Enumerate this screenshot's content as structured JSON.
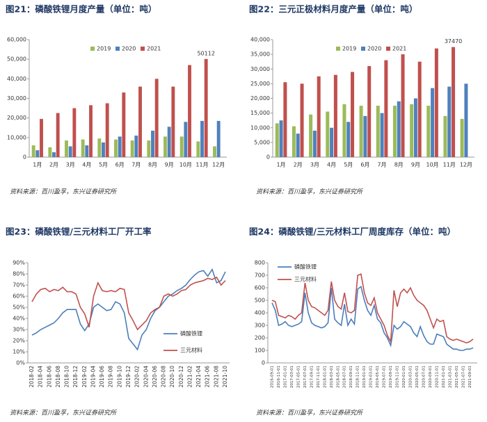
{
  "chart_data": [
    {
      "type": "bar",
      "title": "图21：磷酸铁锂月度产量（单位：吨）",
      "categories": [
        "1月",
        "2月",
        "3月",
        "4月",
        "5月",
        "6月",
        "7月",
        "8月",
        "9月",
        "10月",
        "11月",
        "12月"
      ],
      "series": [
        {
          "name": "2019",
          "color": "#9bbb59",
          "values": [
            6000,
            5000,
            8500,
            9000,
            9500,
            9000,
            8500,
            8500,
            10500,
            10500,
            8000,
            5500
          ]
        },
        {
          "name": "2020",
          "color": "#4f81bd",
          "values": [
            3500,
            2500,
            5500,
            6000,
            7500,
            10500,
            11000,
            13500,
            15500,
            18000,
            18500,
            18500
          ]
        },
        {
          "name": "2021",
          "color": "#c0504d",
          "values": [
            19500,
            22500,
            25000,
            26500,
            27500,
            33000,
            36000,
            40000,
            36000,
            47000,
            50112,
            null
          ]
        }
      ],
      "annotation": "50112",
      "ylim": [
        0,
        60000
      ],
      "yticks": [
        0,
        {
          "value": 10000,
          "label": "10,000"
        },
        {
          "value": 20000,
          "label": "20,000"
        },
        {
          "value": 30000,
          "label": "30,000"
        },
        {
          "value": 40000,
          "label": "40,000"
        },
        {
          "value": 50000,
          "label": "50,000"
        },
        {
          "value": 60000,
          "label": "60,000"
        }
      ],
      "grid": false,
      "legend": "upper center",
      "source": "资料来源：百川盈孚，东兴证券研究所"
    },
    {
      "type": "bar",
      "title": "图22：三元正极材料月度产量（单位：吨）",
      "categories": [
        "1月",
        "2月",
        "3月",
        "4月",
        "5月",
        "6月",
        "7月",
        "8月",
        "9月",
        "10月",
        "11月",
        "12月"
      ],
      "series": [
        {
          "name": "2019",
          "color": "#9bbb59",
          "values": [
            11500,
            10500,
            14500,
            15500,
            18000,
            17500,
            17500,
            17500,
            18000,
            17500,
            14000,
            13000
          ]
        },
        {
          "name": "2020",
          "color": "#4f81bd",
          "values": [
            12500,
            8000,
            9000,
            10000,
            12000,
            14000,
            15000,
            19000,
            20000,
            23500,
            24000,
            25000
          ]
        },
        {
          "name": "2021",
          "color": "#c0504d",
          "values": [
            25500,
            25000,
            27500,
            28000,
            29000,
            31000,
            33000,
            35000,
            32500,
            37000,
            37470,
            null
          ]
        }
      ],
      "annotation": "37470",
      "ylim": [
        0,
        40000
      ],
      "yticks": [
        0,
        {
          "value": 5000,
          "label": "5,000"
        },
        {
          "value": 10000,
          "label": "10,000"
        },
        {
          "value": 15000,
          "label": "15,000"
        },
        {
          "value": 20000,
          "label": "20,000"
        },
        {
          "value": 25000,
          "label": "25,000"
        },
        {
          "value": 30000,
          "label": "30,000"
        },
        {
          "value": 35000,
          "label": "35,000"
        },
        {
          "value": 40000,
          "label": "40,000"
        }
      ],
      "grid": false,
      "legend": "upper center",
      "source": "资料来源：百川盈孚，东兴证券研究所"
    },
    {
      "type": "line",
      "title": "图23：磷酸铁锂/三元材料工厂开工率",
      "categories": [
        "2018-02",
        null,
        "2018-04",
        null,
        "2018-06",
        null,
        "2018-08",
        null,
        "2018-10",
        null,
        "2018-12",
        null,
        "2019-02",
        null,
        "2019-04",
        null,
        "2019-06",
        null,
        "2019-08",
        null,
        "2019-10",
        null,
        "2019-12",
        null,
        "2020-02",
        null,
        "2020-04",
        null,
        "2020-06",
        null,
        "2020-08",
        null,
        "2020-10",
        null,
        "2020-12",
        null,
        "2021-02",
        null,
        "2021-04",
        null,
        "2021-06",
        null,
        "2021-08",
        null,
        "2021-10"
      ],
      "series": [
        {
          "name": "磷酸铁锂",
          "color": "#4a7ebb",
          "values": [
            25,
            27,
            30,
            32,
            34,
            36,
            40,
            45,
            48,
            48,
            48,
            35,
            29,
            35,
            50,
            53,
            50,
            47,
            48,
            55,
            53,
            45,
            22,
            17,
            12,
            25,
            30,
            40,
            47,
            50,
            55,
            60,
            62,
            65,
            67,
            70,
            75,
            79,
            82,
            83,
            78,
            84,
            72,
            74,
            82
          ]
        },
        {
          "name": "三元材料",
          "color": "#c0504d",
          "values": [
            55,
            62,
            66,
            67,
            64,
            66,
            65,
            68,
            64,
            64,
            62,
            50,
            44,
            32,
            60,
            72,
            65,
            64,
            65,
            64,
            67,
            66,
            45,
            38,
            30,
            34,
            38,
            45,
            48,
            50,
            60,
            62,
            60,
            62,
            65,
            66,
            70,
            72,
            73,
            74,
            76,
            75,
            77,
            70,
            74
          ]
        }
      ],
      "ylim": [
        0,
        90
      ],
      "yticks": [
        {
          "value": 0,
          "label": "0%"
        },
        {
          "value": 10,
          "label": "10%"
        },
        {
          "value": 20,
          "label": "20%"
        },
        {
          "value": 30,
          "label": "30%"
        },
        {
          "value": 40,
          "label": "40%"
        },
        {
          "value": 50,
          "label": "50%"
        },
        {
          "value": 60,
          "label": "60%"
        },
        {
          "value": 70,
          "label": "70%"
        },
        {
          "value": 80,
          "label": "80%"
        },
        {
          "value": 90,
          "label": "90%"
        }
      ],
      "grid": false,
      "legend": "lower right",
      "source": "资料来源：百川盈孚，东兴证券研究所"
    },
    {
      "type": "line",
      "title": "图24：磷酸铁锂/三元材料工厂周度库存（单位：吨）",
      "categories": [
        "2016-09-01",
        null,
        "2016-11-01",
        null,
        "2017-01-01",
        null,
        "2017-03-01",
        null,
        "2017-05-01",
        null,
        "2017-07-01",
        null,
        "2017-09-01",
        null,
        "2017-11-01",
        null,
        "2018-01-01",
        null,
        "2018-03-01",
        null,
        "2018-05-01",
        null,
        "2018-07-01",
        null,
        "2018-09-01",
        null,
        "2018-11-01",
        null,
        "2019-01-01",
        null,
        "2019-03-01",
        null,
        "2019-05-01",
        null,
        "2019-07-01",
        null,
        "2019-09-01",
        null,
        "2019-11-01",
        null,
        "2020-01-01",
        null,
        "2020-03-01",
        null,
        "2020-05-01",
        null,
        "2020-07-01",
        null,
        "2020-09-01",
        null,
        "2020-11-01",
        null,
        "2021-01-01",
        null,
        "2021-03-01",
        null,
        "2021-05-01",
        null,
        "2021-07-01",
        null,
        "2021-09-01",
        null
      ],
      "series": [
        {
          "name": "磷酸铁锂",
          "color": "#4a7ebb",
          "values": [
            480,
            420,
            300,
            310,
            330,
            300,
            290,
            300,
            310,
            330,
            560,
            400,
            320,
            300,
            290,
            280,
            290,
            320,
            600,
            350,
            320,
            300,
            470,
            300,
            350,
            310,
            590,
            610,
            500,
            420,
            380,
            460,
            350,
            320,
            240,
            200,
            140,
            300,
            270,
            290,
            330,
            310,
            290,
            240,
            210,
            290,
            220,
            170,
            150,
            150,
            230,
            220,
            210,
            150,
            130,
            110,
            110,
            100,
            100,
            110,
            110,
            120
          ]
        },
        {
          "name": "三元材料",
          "color": "#c0504d",
          "values": [
            500,
            490,
            380,
            370,
            360,
            380,
            370,
            350,
            380,
            400,
            640,
            500,
            450,
            440,
            420,
            400,
            380,
            420,
            650,
            500,
            450,
            430,
            560,
            410,
            400,
            420,
            700,
            710,
            560,
            480,
            460,
            520,
            400,
            350,
            300,
            220,
            170,
            580,
            450,
            560,
            590,
            560,
            600,
            540,
            500,
            480,
            460,
            420,
            350,
            280,
            350,
            330,
            340,
            210,
            190,
            180,
            190,
            180,
            170,
            160,
            170,
            190
          ]
        }
      ],
      "ylim": [
        0,
        800
      ],
      "yticks": [
        0,
        100,
        200,
        300,
        400,
        500,
        600,
        700,
        800
      ],
      "grid": false,
      "legend": "upper left",
      "source": "资料来源：百川盈孚，东兴证券研究所"
    }
  ]
}
